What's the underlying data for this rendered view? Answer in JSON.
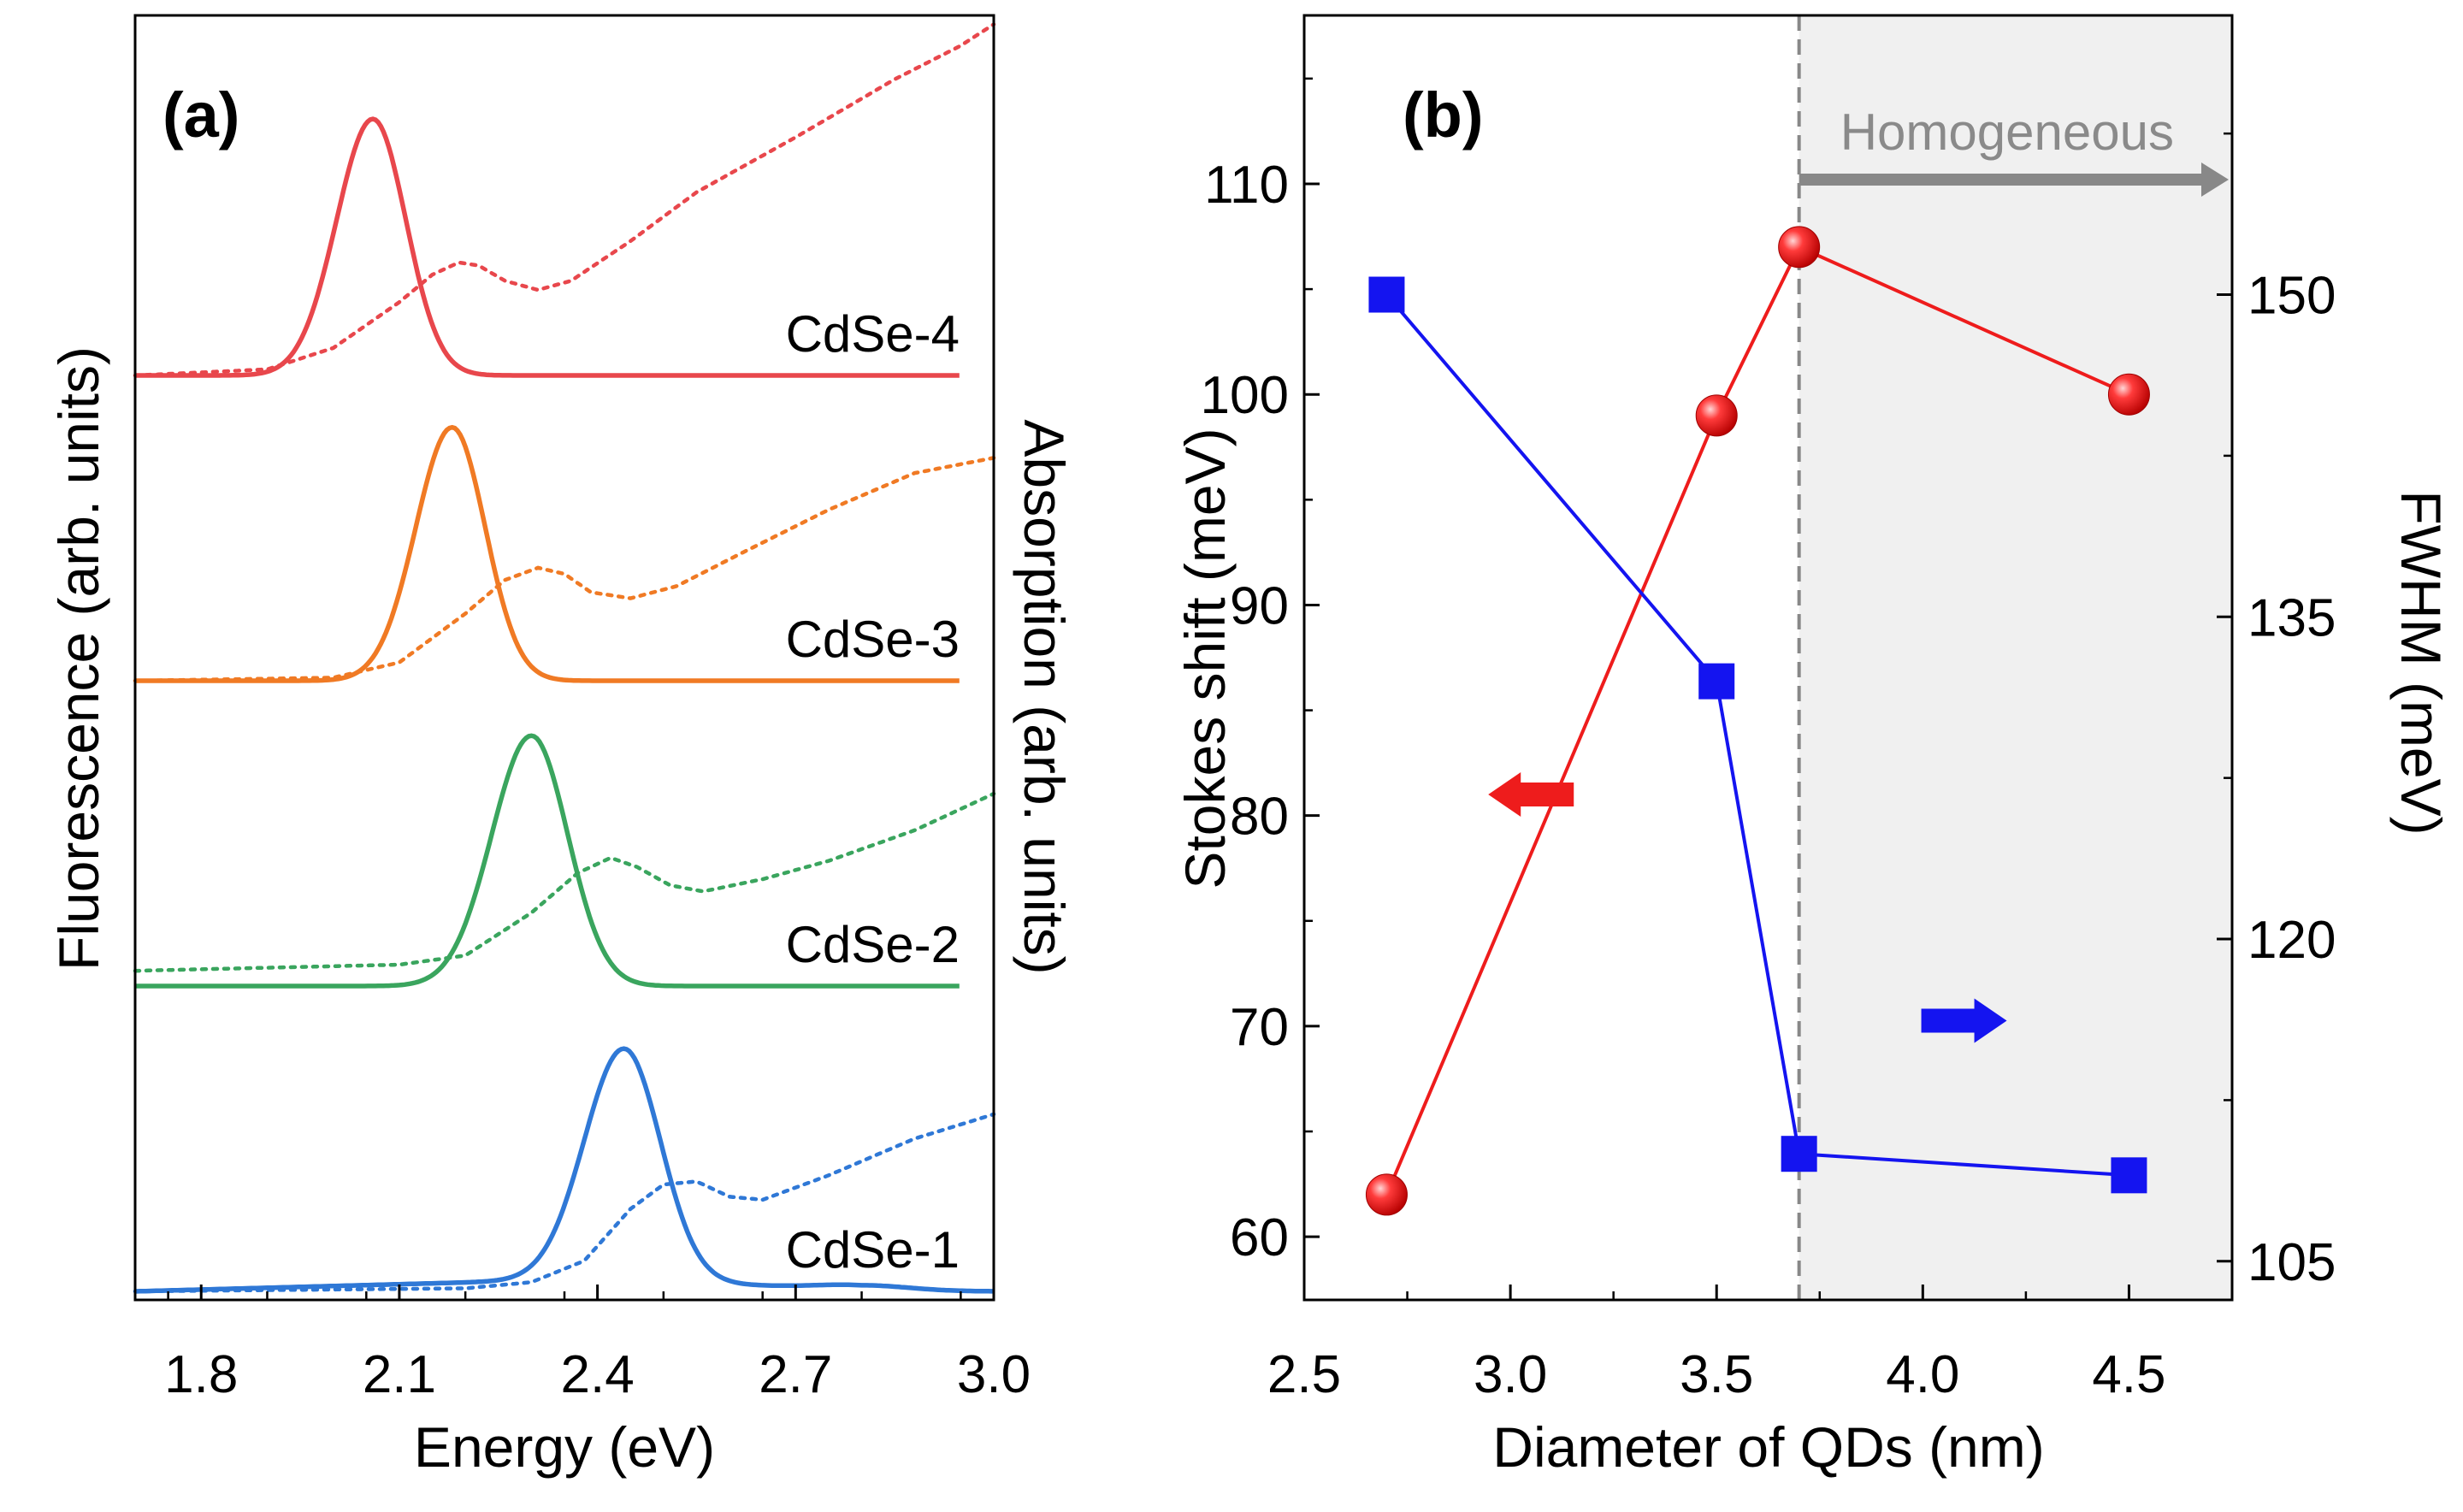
{
  "chart_data": [
    {
      "panel": "(a)",
      "type": "line",
      "xlabel": "Energy (eV)",
      "ylabel_left": "Fluorescence (arb. units)",
      "ylabel_right": "Absorption (arb. units)",
      "xlim": [
        1.7,
        3.0
      ],
      "x_ticks": [
        "1.8",
        "2.1",
        "2.4",
        "2.7",
        "3.0"
      ],
      "x_tick_values": [
        1.8,
        2.1,
        2.4,
        2.7,
        3.0
      ],
      "y_ticks": [],
      "samples": [
        {
          "name": "CdSe-4",
          "color": "#e8474c",
          "offset": 3.0,
          "fluorescence": {
            "range": [
              1.7,
              2.95
            ],
            "peak": 2.06,
            "width_left": 0.055,
            "width_right": 0.05,
            "height": 0.84,
            "base": 0.0,
            "tail": 0.0
          },
          "absorption": {
            "range": [
              1.7,
              3.0
            ],
            "x": [
              1.7,
              1.9,
              2.0,
              2.1,
              2.15,
              2.19,
              2.22,
              2.26,
              2.31,
              2.36,
              2.45,
              2.55,
              2.7,
              2.85,
              2.95,
              3.0
            ],
            "y": [
              0.0,
              0.02,
              0.09,
              0.24,
              0.33,
              0.37,
              0.36,
              0.31,
              0.28,
              0.31,
              0.44,
              0.6,
              0.78,
              0.97,
              1.08,
              1.15
            ]
          }
        },
        {
          "name": "CdSe-3",
          "color": "#f07a24",
          "offset": 2.0,
          "fluorescence": {
            "range": [
              1.7,
              2.95
            ],
            "peak": 2.18,
            "width_left": 0.055,
            "width_right": 0.05,
            "height": 0.83,
            "base": 0.0,
            "tail": 0.0
          },
          "absorption": {
            "range": [
              1.7,
              3.0
            ],
            "x": [
              1.7,
              2.0,
              2.1,
              2.2,
              2.26,
              2.31,
              2.35,
              2.39,
              2.45,
              2.52,
              2.62,
              2.75,
              2.88,
              3.0
            ],
            "y": [
              0.0,
              0.01,
              0.06,
              0.22,
              0.33,
              0.37,
              0.35,
              0.29,
              0.27,
              0.31,
              0.42,
              0.56,
              0.68,
              0.73
            ]
          }
        },
        {
          "name": "CdSe-2",
          "color": "#3aa55e",
          "offset": 1.0,
          "fluorescence": {
            "range": [
              1.7,
              2.95
            ],
            "peak": 2.3,
            "width_left": 0.06,
            "width_right": 0.055,
            "height": 0.82,
            "base": 0.0,
            "tail": -0.02
          },
          "absorption": {
            "range": [
              1.7,
              3.0
            ],
            "x": [
              1.7,
              2.1,
              2.2,
              2.3,
              2.37,
              2.42,
              2.46,
              2.51,
              2.56,
              2.65,
              2.75,
              2.88,
              3.0
            ],
            "y": [
              0.05,
              0.07,
              0.1,
              0.24,
              0.37,
              0.42,
              0.39,
              0.33,
              0.31,
              0.35,
              0.41,
              0.51,
              0.63
            ]
          }
        },
        {
          "name": "CdSe-1",
          "color": "#2f78d6",
          "offset": 0.0,
          "fluorescence": {
            "range": [
              1.7,
              3.0
            ],
            "peak": 2.44,
            "width_left": 0.06,
            "width_right": 0.055,
            "height": 0.76,
            "base": 0.0,
            "tail": 0.0
          },
          "absorption": {
            "range": [
              1.7,
              3.0
            ],
            "x": [
              1.7,
              2.2,
              2.3,
              2.38,
              2.45,
              2.5,
              2.55,
              2.6,
              2.65,
              2.75,
              2.88,
              3.0
            ],
            "y": [
              0.0,
              0.01,
              0.03,
              0.1,
              0.27,
              0.35,
              0.36,
              0.31,
              0.3,
              0.38,
              0.5,
              0.58
            ]
          }
        }
      ]
    },
    {
      "panel": "(b)",
      "type": "line",
      "xlabel": "Diameter of QDs (nm)",
      "ylabel_left": "Stokes shift (meV)",
      "ylabel_right": "FWHM (meV)",
      "xlim": [
        2.5,
        4.75
      ],
      "ylim_left": [
        57,
        118
      ],
      "ylim_right": [
        103.2,
        163.0
      ],
      "x_ticks": [
        "2.5",
        "3.0",
        "3.5",
        "4.0",
        "4.5"
      ],
      "x_tick_values": [
        2.5,
        3.0,
        3.5,
        4.0,
        4.5
      ],
      "y_ticks_left": [
        "60",
        "70",
        "80",
        "90",
        "100",
        "110"
      ],
      "y_tick_values_left": [
        60,
        70,
        80,
        90,
        100,
        110
      ],
      "y_ticks_right": [
        "105",
        "120",
        "135",
        "150"
      ],
      "y_tick_values_right": [
        105,
        120,
        135,
        150
      ],
      "series": [
        {
          "name": "Stokes shift",
          "axis": "left",
          "color": "#ee1c1c",
          "marker": "sphere",
          "x": [
            2.7,
            3.5,
            3.7,
            4.5
          ],
          "values": [
            62,
            99,
            107,
            100
          ]
        },
        {
          "name": "FWHM",
          "axis": "right",
          "color": "#1414f0",
          "marker": "square",
          "x": [
            2.7,
            3.5,
            3.7,
            4.5
          ],
          "values": [
            150,
            132,
            110,
            109
          ]
        }
      ],
      "region": {
        "label": "Homogeneous",
        "x_start": 3.7,
        "color": "#f0f0f0",
        "line_color": "#888888",
        "arrow_color": "#888888",
        "text_color": "#8a8a8a"
      },
      "axis_arrows": [
        {
          "axis": "left",
          "direction": "left",
          "color": "#ee1c1c",
          "x": 3.05,
          "y": 81
        },
        {
          "axis": "right",
          "direction": "right",
          "color": "#1414f0",
          "x": 4.1,
          "y": 116.2
        }
      ]
    }
  ]
}
